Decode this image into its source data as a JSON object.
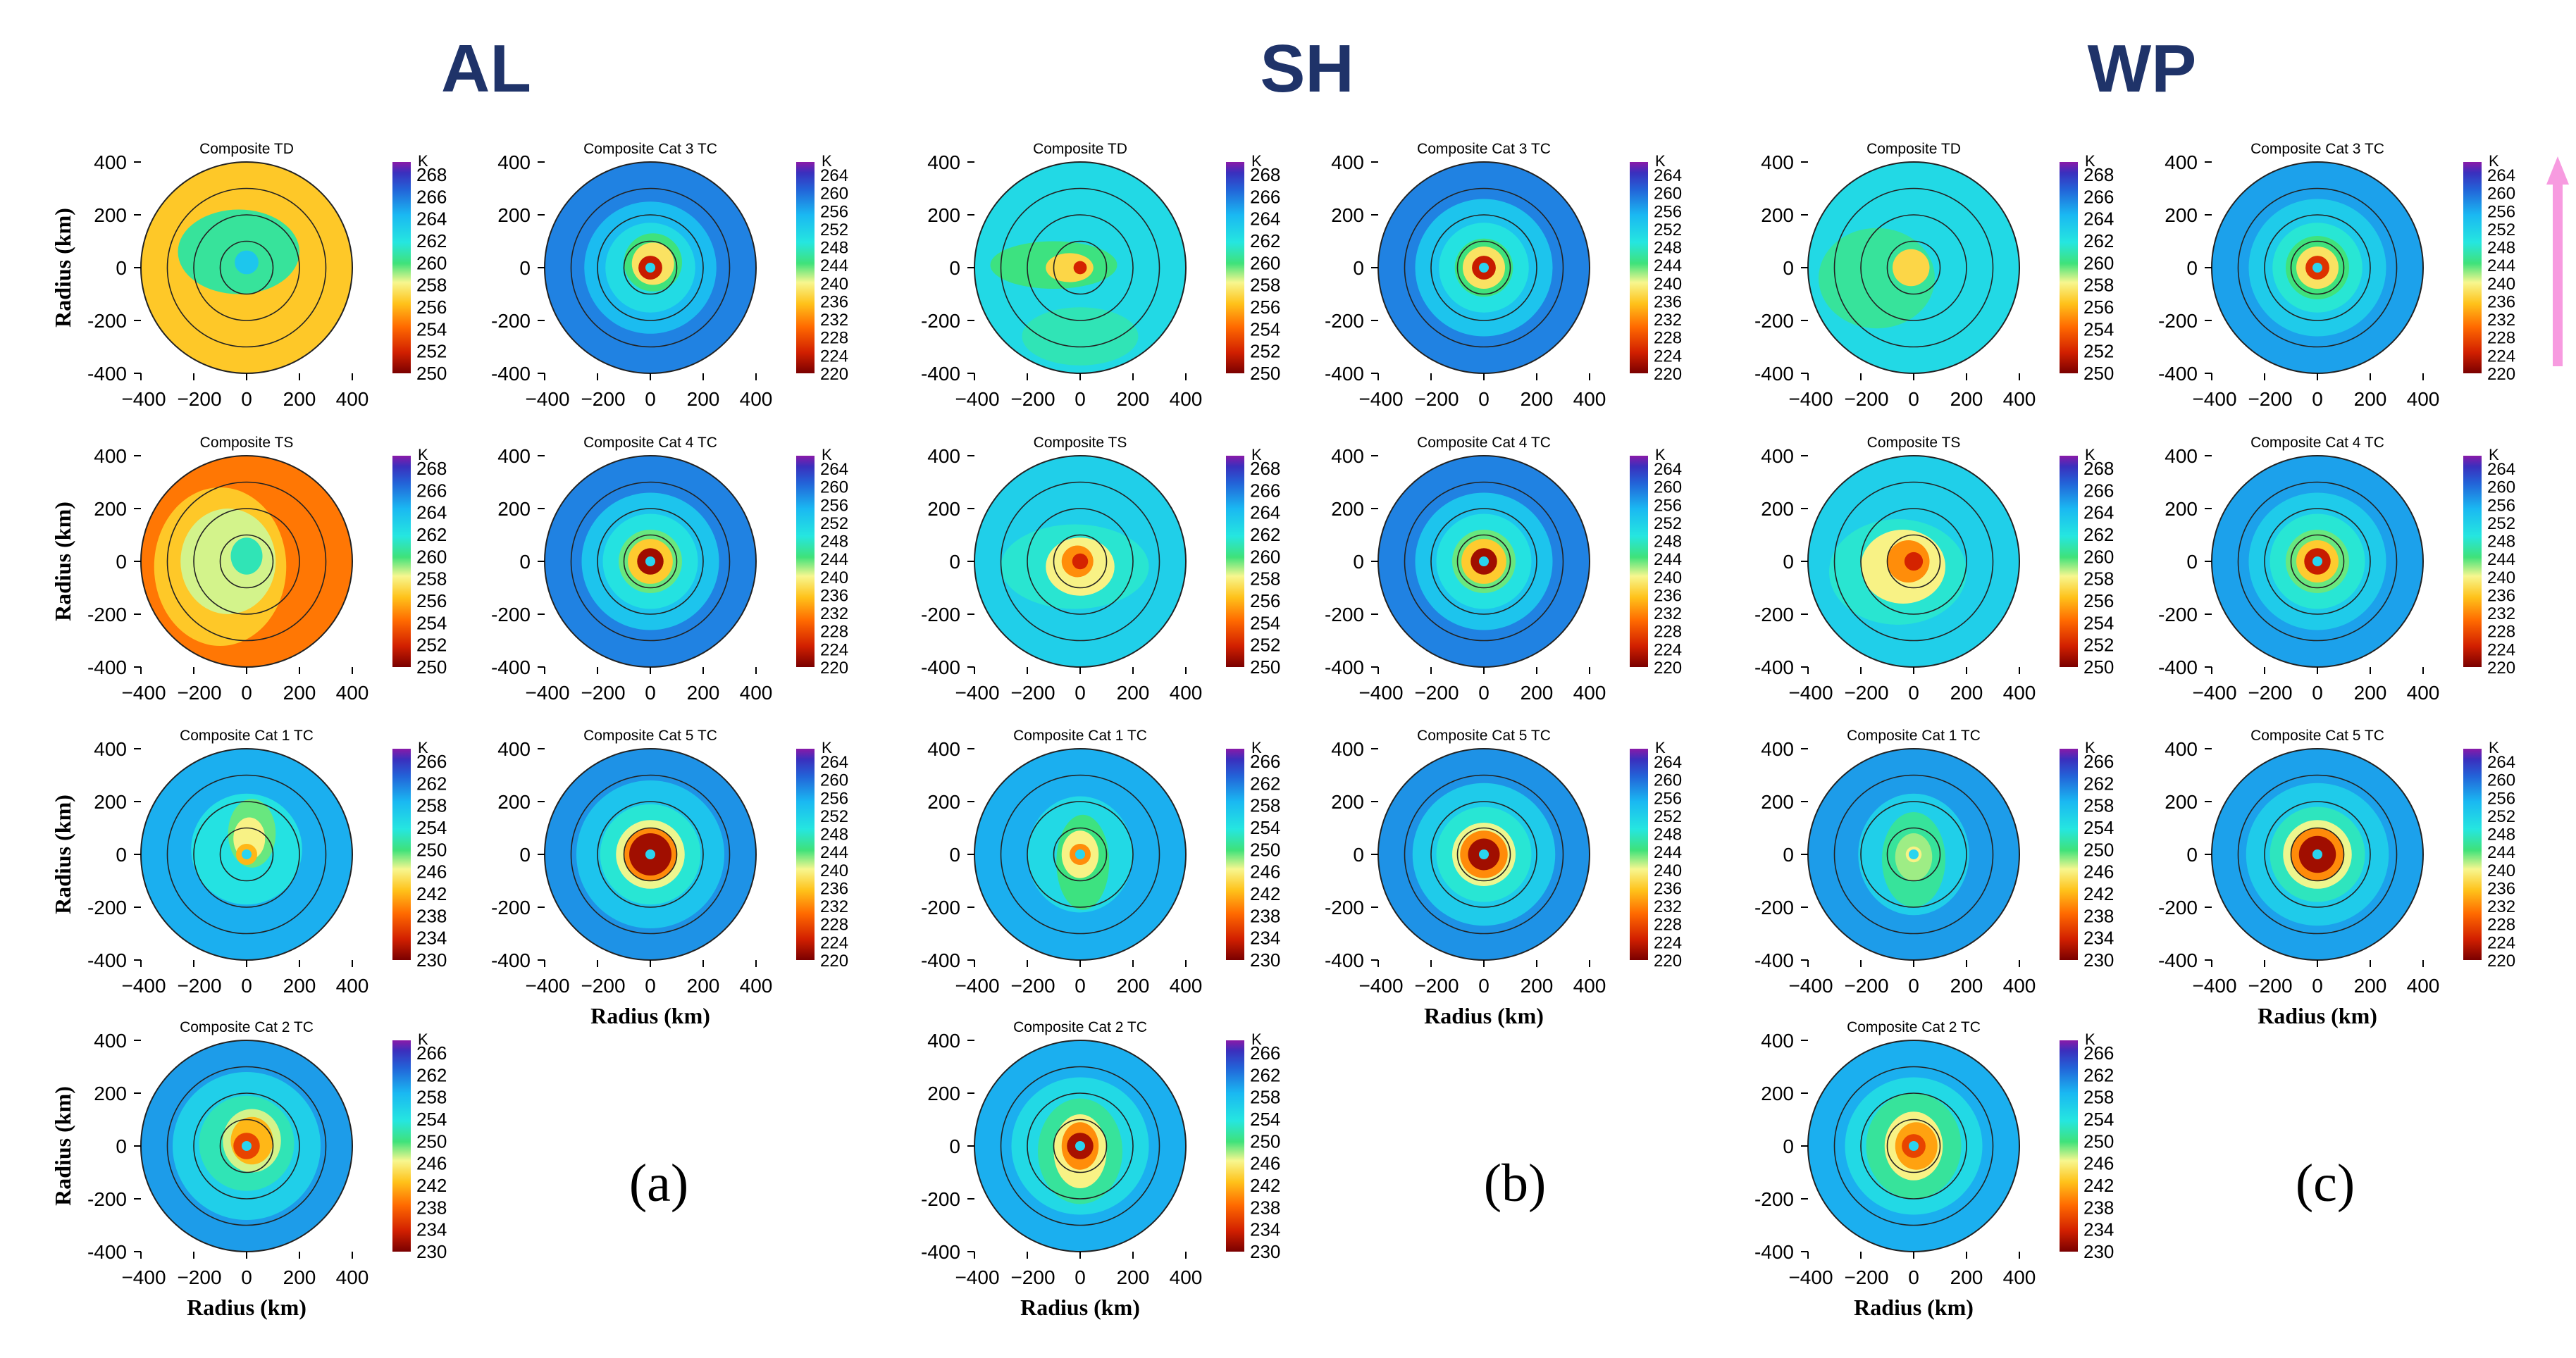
{
  "headers": [
    "AL",
    "SH",
    "WP"
  ],
  "panel_labels": [
    "(a)",
    "(b)",
    "(c)"
  ],
  "axis_label": "Radius (km)",
  "colorbar_unit": "K",
  "x_ticks": [
    -400,
    -200,
    0,
    200,
    400
  ],
  "y_ticks": [
    400,
    200,
    0,
    -200,
    -400
  ],
  "range_rings_km": [
    100,
    200,
    300,
    400
  ],
  "scales": {
    "TD": {
      "ticks": [
        268,
        266,
        264,
        262,
        260,
        258,
        256,
        254,
        252,
        250
      ],
      "min": 250,
      "max": 269
    },
    "TS": {
      "ticks": [
        268,
        266,
        264,
        262,
        260,
        258,
        256,
        254,
        252,
        250
      ],
      "min": 250,
      "max": 269
    },
    "C1": {
      "ticks": [
        266,
        262,
        258,
        254,
        250,
        246,
        242,
        238,
        234,
        230
      ],
      "min": 230,
      "max": 268
    },
    "C2": {
      "ticks": [
        266,
        262,
        258,
        254,
        250,
        246,
        242,
        238,
        234,
        230
      ],
      "min": 230,
      "max": 268
    },
    "C345": {
      "ticks": [
        264,
        260,
        256,
        252,
        248,
        244,
        240,
        236,
        232,
        228,
        224,
        220
      ],
      "min": 220,
      "max": 266
    }
  },
  "arrow_color": "#f79be0",
  "header_color": "#1f3369",
  "chart_data": [
    {
      "basin": "AL",
      "title": "Composite TD",
      "type": "heatmap",
      "scale": "TD",
      "bg": 256.5,
      "core": 258,
      "core_r": 0,
      "zones": [
        {
          "cx": -30,
          "cy": 60,
          "rx": 230,
          "ry": 160,
          "v": 260.5
        },
        {
          "cx": 0,
          "cy": 20,
          "rx": 45,
          "ry": 45,
          "v": 263.5
        }
      ],
      "ylabel": true,
      "xlabel": false
    },
    {
      "basin": "AL",
      "title": "Composite Cat 3 TC",
      "type": "heatmap",
      "scale": "C345",
      "bg": 258,
      "core": 224,
      "core_r": 45,
      "eye": true,
      "zones": [
        {
          "cx": 0,
          "cy": 0,
          "rx": 250,
          "ry": 250,
          "v": 254
        },
        {
          "cx": 0,
          "cy": 0,
          "rx": 170,
          "ry": 170,
          "v": 250
        },
        {
          "cx": 10,
          "cy": 20,
          "rx": 110,
          "ry": 110,
          "v": 244
        },
        {
          "cx": 10,
          "cy": 15,
          "rx": 80,
          "ry": 80,
          "v": 238
        }
      ],
      "ylabel": false,
      "xlabel": false
    },
    {
      "basin": "AL",
      "title": "Composite TS",
      "type": "heatmap",
      "scale": "TS",
      "bg": 254.5,
      "core": 258,
      "core_r": 0,
      "zones": [
        {
          "cx": -100,
          "cy": -20,
          "rx": 250,
          "ry": 300,
          "v": 256.5
        },
        {
          "cx": -70,
          "cy": 0,
          "rx": 180,
          "ry": 200,
          "v": 258.5
        },
        {
          "cx": 0,
          "cy": 20,
          "rx": 60,
          "ry": 70,
          "v": 261
        }
      ],
      "ylabel": true,
      "xlabel": false
    },
    {
      "basin": "AL",
      "title": "Composite Cat 4 TC",
      "type": "heatmap",
      "scale": "C345",
      "bg": 258,
      "core": 222,
      "core_r": 50,
      "eye": true,
      "zones": [
        {
          "cx": 0,
          "cy": 0,
          "rx": 260,
          "ry": 260,
          "v": 253
        },
        {
          "cx": 0,
          "cy": 0,
          "rx": 180,
          "ry": 180,
          "v": 249
        },
        {
          "cx": 0,
          "cy": 0,
          "rx": 120,
          "ry": 120,
          "v": 243
        },
        {
          "cx": 0,
          "cy": 0,
          "rx": 85,
          "ry": 85,
          "v": 236
        }
      ],
      "ylabel": false,
      "xlabel": false
    },
    {
      "basin": "AL",
      "title": "Composite Cat 1 TC",
      "type": "heatmap",
      "scale": "C1",
      "bg": 259,
      "core": 242,
      "core_r": 40,
      "eye": true,
      "zones": [
        {
          "cx": 0,
          "cy": 20,
          "rx": 210,
          "ry": 210,
          "v": 254
        },
        {
          "cx": 20,
          "cy": 80,
          "rx": 90,
          "ry": 130,
          "v": 249
        },
        {
          "cx": 10,
          "cy": 60,
          "rx": 60,
          "ry": 80,
          "v": 246
        }
      ],
      "ylabel": true,
      "xlabel": false
    },
    {
      "basin": "AL",
      "title": "Composite Cat 5 TC",
      "type": "heatmap",
      "scale": "C345",
      "bg": 257,
      "core": 222,
      "core_r": 80,
      "eye": true,
      "zones": [
        {
          "cx": 0,
          "cy": 0,
          "rx": 280,
          "ry": 280,
          "v": 253
        },
        {
          "cx": 0,
          "cy": 0,
          "rx": 190,
          "ry": 190,
          "v": 248
        },
        {
          "cx": 0,
          "cy": 0,
          "rx": 130,
          "ry": 130,
          "v": 240
        },
        {
          "cx": 0,
          "cy": 0,
          "rx": 100,
          "ry": 100,
          "v": 232
        }
      ],
      "ylabel": false,
      "xlabel": true
    },
    {
      "basin": "AL",
      "title": "Composite Cat 2 TC",
      "type": "heatmap",
      "scale": "C2",
      "bg": 260,
      "core": 236,
      "core_r": 50,
      "eye": true,
      "zones": [
        {
          "cx": 0,
          "cy": 0,
          "rx": 280,
          "ry": 280,
          "v": 256
        },
        {
          "cx": 0,
          "cy": 10,
          "rx": 180,
          "ry": 180,
          "v": 252
        },
        {
          "cx": 20,
          "cy": 20,
          "rx": 110,
          "ry": 120,
          "v": 247
        },
        {
          "cx": 20,
          "cy": 20,
          "rx": 80,
          "ry": 90,
          "v": 242
        }
      ],
      "ylabel": true,
      "xlabel": true
    },
    {
      "basin": "SH",
      "title": "Composite TD",
      "type": "heatmap",
      "scale": "TD",
      "bg": 262.5,
      "core": 252,
      "core_r": 25,
      "zones": [
        {
          "cx": -100,
          "cy": 10,
          "rx": 240,
          "ry": 90,
          "v": 260
        },
        {
          "cx": -40,
          "cy": 0,
          "rx": 90,
          "ry": 55,
          "v": 257
        },
        {
          "cx": 0,
          "cy": -260,
          "rx": 220,
          "ry": 110,
          "v": 261
        }
      ],
      "ylabel": false,
      "xlabel": false
    },
    {
      "basin": "SH",
      "title": "Composite Cat 3 TC",
      "type": "heatmap",
      "scale": "C345",
      "bg": 258,
      "core": 224,
      "core_r": 45,
      "eye": true,
      "zones": [
        {
          "cx": 0,
          "cy": 0,
          "rx": 260,
          "ry": 260,
          "v": 253
        },
        {
          "cx": 0,
          "cy": 0,
          "rx": 170,
          "ry": 170,
          "v": 249
        },
        {
          "cx": 0,
          "cy": 0,
          "rx": 110,
          "ry": 110,
          "v": 244
        },
        {
          "cx": 0,
          "cy": 0,
          "rx": 80,
          "ry": 80,
          "v": 238
        }
      ],
      "ylabel": false,
      "xlabel": false
    },
    {
      "basin": "SH",
      "title": "Composite TS",
      "type": "heatmap",
      "scale": "TS",
      "bg": 263,
      "core": 252,
      "core_r": 30,
      "zones": [
        {
          "cx": -20,
          "cy": -20,
          "rx": 280,
          "ry": 160,
          "v": 261.5
        },
        {
          "cx": 0,
          "cy": -20,
          "rx": 130,
          "ry": 110,
          "v": 258
        },
        {
          "cx": -10,
          "cy": 0,
          "rx": 60,
          "ry": 60,
          "v": 255
        }
      ],
      "ylabel": false,
      "xlabel": false
    },
    {
      "basin": "SH",
      "title": "Composite Cat 4 TC",
      "type": "heatmap",
      "scale": "C345",
      "bg": 258,
      "core": 222,
      "core_r": 50,
      "eye": true,
      "zones": [
        {
          "cx": 0,
          "cy": 0,
          "rx": 260,
          "ry": 260,
          "v": 253
        },
        {
          "cx": 0,
          "cy": 0,
          "rx": 180,
          "ry": 180,
          "v": 249
        },
        {
          "cx": 0,
          "cy": 0,
          "rx": 120,
          "ry": 120,
          "v": 243
        },
        {
          "cx": 0,
          "cy": 0,
          "rx": 85,
          "ry": 85,
          "v": 236
        }
      ],
      "ylabel": false,
      "xlabel": false
    },
    {
      "basin": "SH",
      "title": "Composite Cat 1 TC",
      "type": "heatmap",
      "scale": "C1",
      "bg": 259,
      "core": 240,
      "core_r": 40,
      "eye": true,
      "zones": [
        {
          "cx": 0,
          "cy": 0,
          "rx": 200,
          "ry": 220,
          "v": 255
        },
        {
          "cx": 10,
          "cy": -30,
          "rx": 100,
          "ry": 180,
          "v": 250
        },
        {
          "cx": 0,
          "cy": 0,
          "rx": 70,
          "ry": 90,
          "v": 246
        }
      ],
      "ylabel": false,
      "xlabel": false
    },
    {
      "basin": "SH",
      "title": "Composite Cat 5 TC",
      "type": "heatmap",
      "scale": "C345",
      "bg": 257,
      "core": 222,
      "core_r": 60,
      "eye": true,
      "zones": [
        {
          "cx": 0,
          "cy": 0,
          "rx": 270,
          "ry": 270,
          "v": 252
        },
        {
          "cx": 0,
          "cy": 0,
          "rx": 180,
          "ry": 180,
          "v": 248
        },
        {
          "cx": 0,
          "cy": 0,
          "rx": 120,
          "ry": 120,
          "v": 240
        },
        {
          "cx": 0,
          "cy": 0,
          "rx": 90,
          "ry": 90,
          "v": 232
        }
      ],
      "ylabel": false,
      "xlabel": true
    },
    {
      "basin": "SH",
      "title": "Composite Cat 2 TC",
      "type": "heatmap",
      "scale": "C2",
      "bg": 259,
      "core": 232,
      "core_r": 50,
      "eye": true,
      "zones": [
        {
          "cx": 0,
          "cy": 0,
          "rx": 260,
          "ry": 260,
          "v": 255
        },
        {
          "cx": 0,
          "cy": -20,
          "rx": 160,
          "ry": 200,
          "v": 251
        },
        {
          "cx": 0,
          "cy": -20,
          "rx": 100,
          "ry": 140,
          "v": 246
        },
        {
          "cx": 0,
          "cy": 0,
          "rx": 70,
          "ry": 90,
          "v": 240
        }
      ],
      "ylabel": false,
      "xlabel": true
    },
    {
      "basin": "WP",
      "title": "Composite TD",
      "type": "heatmap",
      "scale": "TD",
      "bg": 262.5,
      "core": 256,
      "core_r": 0,
      "zones": [
        {
          "cx": -140,
          "cy": -40,
          "rx": 220,
          "ry": 190,
          "v": 260.5
        },
        {
          "cx": -10,
          "cy": 0,
          "rx": 70,
          "ry": 70,
          "v": 257
        }
      ],
      "ylabel": false,
      "xlabel": false
    },
    {
      "basin": "WP",
      "title": "Composite Cat 3 TC",
      "type": "heatmap",
      "scale": "C345",
      "bg": 256,
      "core": 226,
      "core_r": 45,
      "eye": true,
      "zones": [
        {
          "cx": 0,
          "cy": 0,
          "rx": 260,
          "ry": 260,
          "v": 252
        },
        {
          "cx": 0,
          "cy": 0,
          "rx": 170,
          "ry": 170,
          "v": 248
        },
        {
          "cx": 0,
          "cy": 0,
          "rx": 120,
          "ry": 120,
          "v": 244
        },
        {
          "cx": 0,
          "cy": 0,
          "rx": 80,
          "ry": 80,
          "v": 238
        }
      ],
      "ylabel": false,
      "xlabel": false
    },
    {
      "basin": "WP",
      "title": "Composite TS",
      "type": "heatmap",
      "scale": "TS",
      "bg": 263,
      "core": 252,
      "core_r": 35,
      "zones": [
        {
          "cx": -60,
          "cy": -40,
          "rx": 260,
          "ry": 200,
          "v": 261.5
        },
        {
          "cx": -40,
          "cy": -20,
          "rx": 160,
          "ry": 140,
          "v": 258
        },
        {
          "cx": -20,
          "cy": 0,
          "rx": 80,
          "ry": 80,
          "v": 255
        }
      ],
      "ylabel": false,
      "xlabel": false
    },
    {
      "basin": "WP",
      "title": "Composite Cat 4 TC",
      "type": "heatmap",
      "scale": "C345",
      "bg": 256,
      "core": 224,
      "core_r": 50,
      "eye": true,
      "zones": [
        {
          "cx": 0,
          "cy": 0,
          "rx": 260,
          "ry": 260,
          "v": 252
        },
        {
          "cx": 0,
          "cy": 0,
          "rx": 180,
          "ry": 180,
          "v": 248
        },
        {
          "cx": 0,
          "cy": 0,
          "rx": 120,
          "ry": 120,
          "v": 243
        },
        {
          "cx": 0,
          "cy": 0,
          "rx": 80,
          "ry": 80,
          "v": 236
        }
      ],
      "ylabel": false,
      "xlabel": false
    },
    {
      "basin": "WP",
      "title": "Composite Cat 1 TC",
      "type": "heatmap",
      "scale": "C1",
      "bg": 260,
      "core": 246,
      "core_r": 30,
      "eye": true,
      "zones": [
        {
          "cx": 0,
          "cy": 0,
          "rx": 210,
          "ry": 230,
          "v": 256
        },
        {
          "cx": 0,
          "cy": -20,
          "rx": 120,
          "ry": 180,
          "v": 251
        },
        {
          "cx": 0,
          "cy": -10,
          "rx": 70,
          "ry": 90,
          "v": 248
        }
      ],
      "ylabel": false,
      "xlabel": false
    },
    {
      "basin": "WP",
      "title": "Composite Cat 5 TC",
      "type": "heatmap",
      "scale": "C345",
      "bg": 256,
      "core": 222,
      "core_r": 70,
      "eye": true,
      "zones": [
        {
          "cx": 0,
          "cy": 0,
          "rx": 270,
          "ry": 270,
          "v": 252
        },
        {
          "cx": 0,
          "cy": 0,
          "rx": 180,
          "ry": 180,
          "v": 247
        },
        {
          "cx": 0,
          "cy": 0,
          "rx": 130,
          "ry": 130,
          "v": 240
        },
        {
          "cx": 0,
          "cy": 0,
          "rx": 100,
          "ry": 100,
          "v": 232
        }
      ],
      "ylabel": false,
      "xlabel": true
    },
    {
      "basin": "WP",
      "title": "Composite Cat 2 TC",
      "type": "heatmap",
      "scale": "C2",
      "bg": 259,
      "core": 236,
      "core_r": 45,
      "eye": true,
      "zones": [
        {
          "cx": 0,
          "cy": 0,
          "rx": 260,
          "ry": 260,
          "v": 255
        },
        {
          "cx": 0,
          "cy": 0,
          "rx": 180,
          "ry": 200,
          "v": 251
        },
        {
          "cx": 0,
          "cy": 0,
          "rx": 110,
          "ry": 130,
          "v": 246
        },
        {
          "cx": 10,
          "cy": 0,
          "rx": 80,
          "ry": 90,
          "v": 241
        }
      ],
      "ylabel": false,
      "xlabel": true
    }
  ]
}
